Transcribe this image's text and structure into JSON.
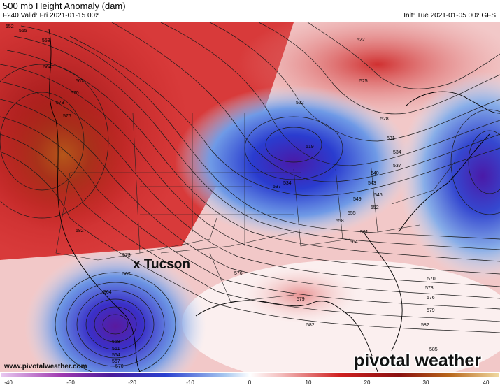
{
  "header": {
    "title": "500 mb Height Anomaly (dam)",
    "valid": "F240 Valid: Fri 2021-01-15 00z",
    "init": "Init: Tue 2021-01-05 00z GFS"
  },
  "map": {
    "marker": "x Tucson",
    "website": "www.pivotalweather.com",
    "logo": "pivotal weather",
    "contour_labels": [
      "552",
      "555",
      "558",
      "564",
      "567",
      "570",
      "573",
      "576",
      "582",
      "573",
      "567",
      "564",
      "558",
      "561",
      "564",
      "567",
      "570",
      "573",
      "576",
      "579",
      "582",
      "585",
      "576",
      "570",
      "573",
      "576",
      "579",
      "582",
      "561",
      "564",
      "558",
      "555",
      "552",
      "549",
      "546",
      "543",
      "540",
      "537",
      "534",
      "531",
      "528",
      "525",
      "522",
      "519",
      "522",
      "525",
      "528",
      "534",
      "537"
    ]
  },
  "colorbar": {
    "ticks": [
      "-40",
      "-30",
      "-20",
      "-10",
      "0",
      "10",
      "20",
      "30",
      "40"
    ],
    "colors": {
      "neg_deep": "#4b1a8a",
      "neg": "#2040c8",
      "zero": "#ffffff",
      "pos": "#d02020",
      "pos_deep": "#7a1010"
    }
  },
  "colors": {
    "ridge_core": "#8a2a10",
    "ridge": "#c41e1e",
    "trough": "#2a3ccf",
    "trough_core": "#4a1a9a"
  }
}
